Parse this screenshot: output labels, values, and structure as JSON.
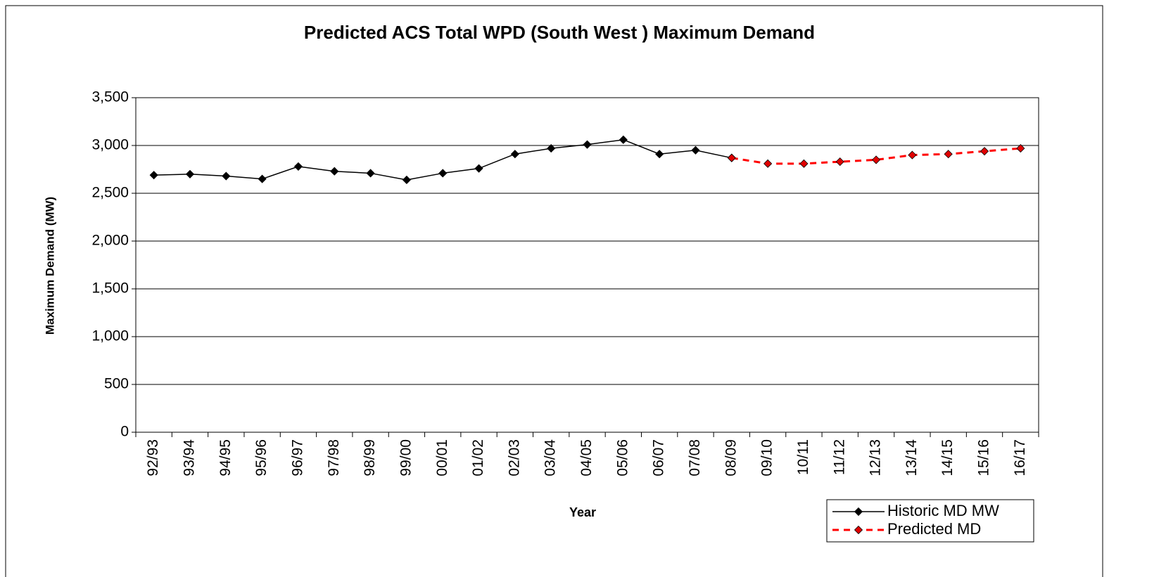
{
  "chart_data": {
    "type": "line",
    "title": "Predicted ACS Total WPD (South West ) Maximum Demand",
    "x_label": "Year",
    "y_label": "Maximum Demand (MW)",
    "categories": [
      "92/93",
      "93/94",
      "94/95",
      "95/96",
      "96/97",
      "97/98",
      "98/99",
      "99/00",
      "00/01",
      "01/02",
      "02/03",
      "03/04",
      "04/05",
      "05/06",
      "06/07",
      "07/08",
      "08/09",
      "09/10",
      "10/11",
      "11/12",
      "12/13",
      "13/14",
      "14/15",
      "15/16",
      "16/17"
    ],
    "series": [
      {
        "name": "Historic MD MW",
        "color": "#000000",
        "marker_color": "#000000",
        "line_style": "solid",
        "values": [
          2690,
          2700,
          2680,
          2650,
          2780,
          2730,
          2710,
          2640,
          2710,
          2760,
          2910,
          2970,
          3010,
          3060,
          2910,
          2950,
          2870,
          null,
          null,
          null,
          null,
          null,
          null,
          null,
          null
        ]
      },
      {
        "name": "Predicted MD",
        "color": "#ff0000",
        "marker_color": "#e00000",
        "line_style": "dashed",
        "values": [
          null,
          null,
          null,
          null,
          null,
          null,
          null,
          null,
          null,
          null,
          null,
          null,
          null,
          null,
          null,
          null,
          2870,
          2810,
          2810,
          2830,
          2850,
          2900,
          2910,
          2940,
          2970
        ]
      }
    ],
    "ylim": [
      0,
      3500
    ],
    "yticks": [
      0,
      500,
      {
        "value": 1000,
        "label": "1,000"
      },
      {
        "value": 1500,
        "label": "1,500"
      },
      {
        "value": 2000,
        "label": "2,000"
      },
      {
        "value": 2500,
        "label": "2,500"
      },
      {
        "value": 3000,
        "label": "3,000"
      },
      {
        "value": 3500,
        "label": "3,500"
      }
    ],
    "grid": true,
    "legend": "bottom-right"
  }
}
